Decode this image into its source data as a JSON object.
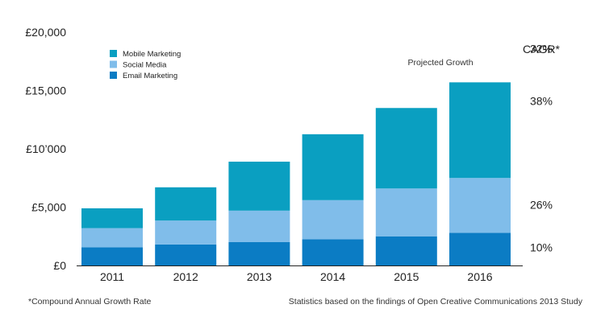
{
  "chart_data": {
    "type": "bar",
    "stacked": true,
    "categories": [
      "2011",
      "2012",
      "2013",
      "2014",
      "2015",
      "2016"
    ],
    "series": [
      {
        "name": "Email Marketing",
        "color": "#0b7cc4",
        "values": [
          1550,
          1800,
          2000,
          2250,
          2500,
          2800
        ]
      },
      {
        "name": "Social Media",
        "color": "#80bdea",
        "values": [
          1650,
          2050,
          2700,
          3350,
          4100,
          4700
        ]
      },
      {
        "name": "Mobile Marketing",
        "color": "#0a9fc1",
        "values": [
          1700,
          2850,
          4200,
          5650,
          6900,
          8200
        ]
      }
    ],
    "y_ticks": [
      {
        "value": 0,
        "label": "£0"
      },
      {
        "value": 5000,
        "label": "£5,000"
      },
      {
        "value": 10000,
        "label": "£10’000"
      },
      {
        "value": 15000,
        "label": "£15,000"
      },
      {
        "value": 20000,
        "label": "£20,000"
      }
    ],
    "ylim": [
      0,
      20000
    ],
    "grid": false,
    "legend_position": "top-left",
    "legend_order": [
      "Mobile Marketing",
      "Social Media",
      "Email Marketing"
    ],
    "annotation": "Projected Growth",
    "cagr": {
      "title": "CAGR*",
      "labels": [
        {
          "label": "32%",
          "value": 18600
        },
        {
          "label": "38%",
          "value": 14100
        },
        {
          "label": "26%",
          "value": 5200
        },
        {
          "label": "10%",
          "value": 1550
        }
      ]
    },
    "footnote_left": "*Compound Annual Growth Rate",
    "footnote_right": "Statistics based on the findings of Open Creative Communications 2013 Study"
  }
}
